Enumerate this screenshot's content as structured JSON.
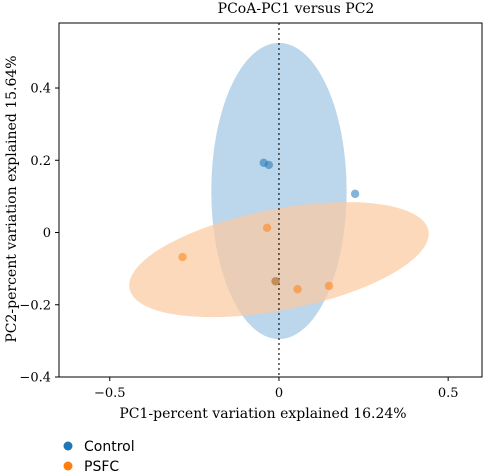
{
  "chart_data": {
    "type": "scatter",
    "title": "PCoA-PC1 versus PC2",
    "xlabel": "PC1-percent variation explained 16.24%",
    "ylabel": "PC2-percent variation explained 15.64%",
    "xlim": [
      -0.65,
      0.6
    ],
    "ylim": [
      -0.4,
      0.58
    ],
    "xticks": [
      -0.5,
      0,
      0.5
    ],
    "xtick_labels": [
      "−0.5",
      "0",
      "0.5"
    ],
    "yticks": [
      -0.4,
      -0.2,
      0,
      0.2,
      0.4
    ],
    "ytick_labels": [
      "−0.4",
      "−0.2",
      "0",
      "0.2",
      "0.4"
    ],
    "reference_line": {
      "x": 0,
      "style": "dotted"
    },
    "legend_position": "bottom-left outside",
    "series": [
      {
        "name": "Control",
        "color": "#1f77b4",
        "ellipse_color": "#9fc4e2",
        "points": [
          [
            -0.045,
            0.193
          ],
          [
            -0.03,
            0.187
          ],
          [
            0.225,
            0.107
          ],
          [
            -0.01,
            -0.135
          ]
        ],
        "ellipse": {
          "cx": 0.0,
          "cy": 0.115,
          "rx": 0.2,
          "ry": 0.41,
          "angle": 0
        }
      },
      {
        "name": "PSFC",
        "color": "#ff7f0e",
        "ellipse_color": "#fcc9a0",
        "points": [
          [
            -0.035,
            0.013
          ],
          [
            -0.285,
            -0.068
          ],
          [
            0.055,
            -0.157
          ],
          [
            0.148,
            -0.148
          ],
          [
            -0.01,
            -0.135
          ]
        ],
        "ellipse": {
          "cx": 0.0,
          "cy": -0.075,
          "rx": 0.45,
          "ry": 0.14,
          "angle": -11
        }
      }
    ]
  }
}
